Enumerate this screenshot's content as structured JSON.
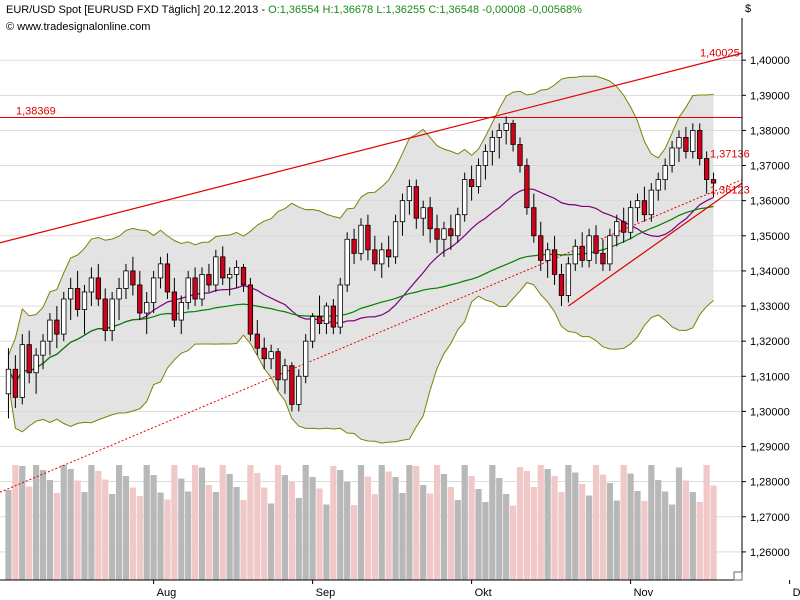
{
  "header": {
    "instrument": "EUR/USD Spot [EURUSD FXD  Täglich] 20.12.2013 -",
    "open": "O:1,36554",
    "high": "H:1,36678",
    "low": "L:1,36255",
    "close": "C:1,36548",
    "change": "-0,00008",
    "change_pct": "-0,00568%",
    "credit": "© www.tradesignalonline.com",
    "currency_symbol": "$"
  },
  "colors": {
    "up_candle": "#ffffff",
    "down_candle": "#d0021b",
    "bollinger_fill": "#d9d9d9",
    "bollinger_line": "#808000",
    "ma_purple": "#800080",
    "ma_green": "#008000",
    "trendline": "#e00000",
    "volume_gray": "#b8b8b8",
    "volume_pink": "#f0c8c8",
    "grid": "#c8c8c8"
  },
  "chart_data": {
    "type": "candlestick",
    "y_axis": {
      "range": [
        1.252,
        1.412
      ],
      "ticks": [
        "1,40000",
        "1,39000",
        "1,38000",
        "1,37000",
        "1,36000",
        "1,35000",
        "1,34000",
        "1,33000",
        "1,32000",
        "1,31000",
        "1,30000",
        "1,29000",
        "1,28000",
        "1,27000",
        "1,26000"
      ],
      "tick_values": [
        1.4,
        1.39,
        1.38,
        1.37,
        1.36,
        1.35,
        1.34,
        1.33,
        1.32,
        1.31,
        1.3,
        1.29,
        1.28,
        1.27,
        1.26
      ]
    },
    "x_axis": {
      "labels": [
        "Aug",
        "Sep",
        "Okt",
        "Nov",
        "Dez"
      ],
      "label_bar_index": [
        21,
        44,
        67,
        90,
        113
      ]
    },
    "price_labels": [
      {
        "text": "1,40025",
        "value": 1.40025
      },
      {
        "text": "1,38369",
        "value": 1.38369
      },
      {
        "text": "1,37136",
        "value": 1.37136
      },
      {
        "text": "1,36123",
        "value": 1.36123
      }
    ],
    "horizontal_lines": [
      1.38369
    ],
    "candles": [
      [
        1.305,
        1.318,
        1.298,
        1.312
      ],
      [
        1.312,
        1.316,
        1.301,
        1.304
      ],
      [
        1.304,
        1.322,
        1.302,
        1.319
      ],
      [
        1.319,
        1.323,
        1.308,
        1.311
      ],
      [
        1.311,
        1.318,
        1.305,
        1.316
      ],
      [
        1.316,
        1.322,
        1.312,
        1.32
      ],
      [
        1.32,
        1.328,
        1.316,
        1.326
      ],
      [
        1.326,
        1.33,
        1.318,
        1.322
      ],
      [
        1.322,
        1.334,
        1.32,
        1.332
      ],
      [
        1.332,
        1.338,
        1.326,
        1.335
      ],
      [
        1.335,
        1.34,
        1.327,
        1.329
      ],
      [
        1.329,
        1.336,
        1.322,
        1.334
      ],
      [
        1.334,
        1.341,
        1.33,
        1.338
      ],
      [
        1.338,
        1.342,
        1.33,
        1.332
      ],
      [
        1.332,
        1.335,
        1.32,
        1.323
      ],
      [
        1.323,
        1.334,
        1.32,
        1.332
      ],
      [
        1.332,
        1.338,
        1.326,
        1.335
      ],
      [
        1.335,
        1.342,
        1.332,
        1.34
      ],
      [
        1.34,
        1.344,
        1.333,
        1.336
      ],
      [
        1.336,
        1.34,
        1.326,
        1.328
      ],
      [
        1.328,
        1.334,
        1.322,
        1.331
      ],
      [
        1.331,
        1.34,
        1.328,
        1.338
      ],
      [
        1.338,
        1.344,
        1.335,
        1.342
      ],
      [
        1.342,
        1.345,
        1.332,
        1.334
      ],
      [
        1.334,
        1.338,
        1.324,
        1.326
      ],
      [
        1.326,
        1.333,
        1.322,
        1.331
      ],
      [
        1.331,
        1.34,
        1.329,
        1.338
      ],
      [
        1.338,
        1.341,
        1.33,
        1.332
      ],
      [
        1.332,
        1.341,
        1.33,
        1.339
      ],
      [
        1.339,
        1.342,
        1.334,
        1.336
      ],
      [
        1.336,
        1.346,
        1.334,
        1.344
      ],
      [
        1.344,
        1.347,
        1.336,
        1.338
      ],
      [
        1.338,
        1.341,
        1.333,
        1.339
      ],
      [
        1.339,
        1.343,
        1.335,
        1.341
      ],
      [
        1.341,
        1.342,
        1.334,
        1.336
      ],
      [
        1.336,
        1.338,
        1.32,
        1.322
      ],
      [
        1.322,
        1.326,
        1.316,
        1.318
      ],
      [
        1.318,
        1.321,
        1.312,
        1.315
      ],
      [
        1.315,
        1.319,
        1.312,
        1.317
      ],
      [
        1.317,
        1.318,
        1.306,
        1.309
      ],
      [
        1.309,
        1.315,
        1.305,
        1.313
      ],
      [
        1.313,
        1.314,
        1.3,
        1.302
      ],
      [
        1.302,
        1.312,
        1.3,
        1.31
      ],
      [
        1.31,
        1.322,
        1.308,
        1.32
      ],
      [
        1.32,
        1.328,
        1.318,
        1.327
      ],
      [
        1.327,
        1.333,
        1.322,
        1.325
      ],
      [
        1.325,
        1.331,
        1.322,
        1.33
      ],
      [
        1.33,
        1.332,
        1.322,
        1.324
      ],
      [
        1.324,
        1.338,
        1.322,
        1.336
      ],
      [
        1.336,
        1.351,
        1.334,
        1.349
      ],
      [
        1.349,
        1.352,
        1.342,
        1.345
      ],
      [
        1.345,
        1.355,
        1.343,
        1.353
      ],
      [
        1.353,
        1.356,
        1.343,
        1.346
      ],
      [
        1.346,
        1.35,
        1.34,
        1.342
      ],
      [
        1.342,
        1.348,
        1.338,
        1.346
      ],
      [
        1.346,
        1.35,
        1.341,
        1.344
      ],
      [
        1.344,
        1.356,
        1.342,
        1.354
      ],
      [
        1.354,
        1.362,
        1.35,
        1.36
      ],
      [
        1.36,
        1.366,
        1.356,
        1.364
      ],
      [
        1.364,
        1.366,
        1.352,
        1.355
      ],
      [
        1.355,
        1.36,
        1.35,
        1.358
      ],
      [
        1.358,
        1.361,
        1.348,
        1.352
      ],
      [
        1.352,
        1.356,
        1.345,
        1.349
      ],
      [
        1.349,
        1.354,
        1.344,
        1.352
      ],
      [
        1.352,
        1.356,
        1.346,
        1.35
      ],
      [
        1.35,
        1.358,
        1.348,
        1.356
      ],
      [
        1.356,
        1.368,
        1.354,
        1.366
      ],
      [
        1.366,
        1.37,
        1.36,
        1.364
      ],
      [
        1.364,
        1.372,
        1.362,
        1.37
      ],
      [
        1.37,
        1.376,
        1.366,
        1.374
      ],
      [
        1.374,
        1.38,
        1.37,
        1.378
      ],
      [
        1.378,
        1.382,
        1.372,
        1.38
      ],
      [
        1.38,
        1.384,
        1.376,
        1.382
      ],
      [
        1.382,
        1.383,
        1.374,
        1.376
      ],
      [
        1.376,
        1.378,
        1.368,
        1.37
      ],
      [
        1.37,
        1.372,
        1.356,
        1.358
      ],
      [
        1.358,
        1.362,
        1.348,
        1.35
      ],
      [
        1.35,
        1.354,
        1.34,
        1.343
      ],
      [
        1.343,
        1.348,
        1.338,
        1.346
      ],
      [
        1.346,
        1.35,
        1.336,
        1.339
      ],
      [
        1.339,
        1.342,
        1.33,
        1.333
      ],
      [
        1.333,
        1.344,
        1.331,
        1.342
      ],
      [
        1.342,
        1.349,
        1.34,
        1.347
      ],
      [
        1.347,
        1.351,
        1.341,
        1.343
      ],
      [
        1.343,
        1.352,
        1.341,
        1.35
      ],
      [
        1.35,
        1.353,
        1.342,
        1.345
      ],
      [
        1.345,
        1.349,
        1.34,
        1.342
      ],
      [
        1.342,
        1.352,
        1.34,
        1.35
      ],
      [
        1.35,
        1.356,
        1.347,
        1.354
      ],
      [
        1.354,
        1.358,
        1.348,
        1.351
      ],
      [
        1.351,
        1.36,
        1.349,
        1.358
      ],
      [
        1.358,
        1.362,
        1.354,
        1.36
      ],
      [
        1.36,
        1.364,
        1.354,
        1.356
      ],
      [
        1.356,
        1.365,
        1.354,
        1.363
      ],
      [
        1.363,
        1.368,
        1.36,
        1.366
      ],
      [
        1.366,
        1.372,
        1.363,
        1.37
      ],
      [
        1.37,
        1.377,
        1.368,
        1.375
      ],
      [
        1.375,
        1.38,
        1.371,
        1.378
      ],
      [
        1.378,
        1.381,
        1.372,
        1.374
      ],
      [
        1.374,
        1.382,
        1.372,
        1.38
      ],
      [
        1.38,
        1.382,
        1.37,
        1.372
      ],
      [
        1.372,
        1.374,
        1.362,
        1.366
      ],
      [
        1.366,
        1.368,
        1.361,
        1.365
      ]
    ]
  }
}
